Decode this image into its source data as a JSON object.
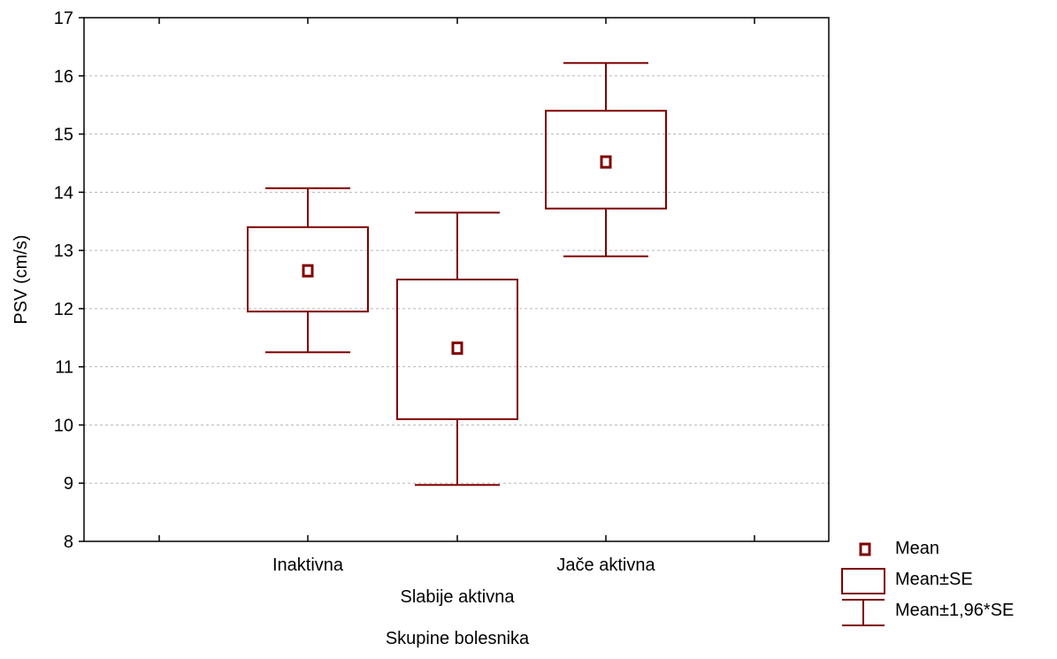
{
  "chart_data": {
    "type": "box",
    "title": "",
    "xlabel": "Skupine bolesnika",
    "ylabel": "PSV (cm/s)",
    "ylim": [
      8,
      17
    ],
    "yticks": [
      8,
      9,
      10,
      11,
      12,
      13,
      14,
      15,
      16,
      17
    ],
    "grid": "horizontal dashed",
    "categories": [
      "Inaktivna",
      "Slabije aktivna",
      "Jače aktivna"
    ],
    "mean": [
      12.65,
      11.32,
      14.52
    ],
    "se_lower": [
      11.95,
      10.1,
      13.72
    ],
    "se_upper": [
      13.4,
      12.5,
      15.4
    ],
    "ci_lower": [
      11.25,
      8.97,
      12.9
    ],
    "ci_upper": [
      14.07,
      13.65,
      16.22
    ],
    "color": "#7f0000",
    "legend": {
      "placement": "bottom-right",
      "entries": [
        "Mean",
        "Mean±SE",
        "Mean±1,96*SE"
      ]
    }
  }
}
